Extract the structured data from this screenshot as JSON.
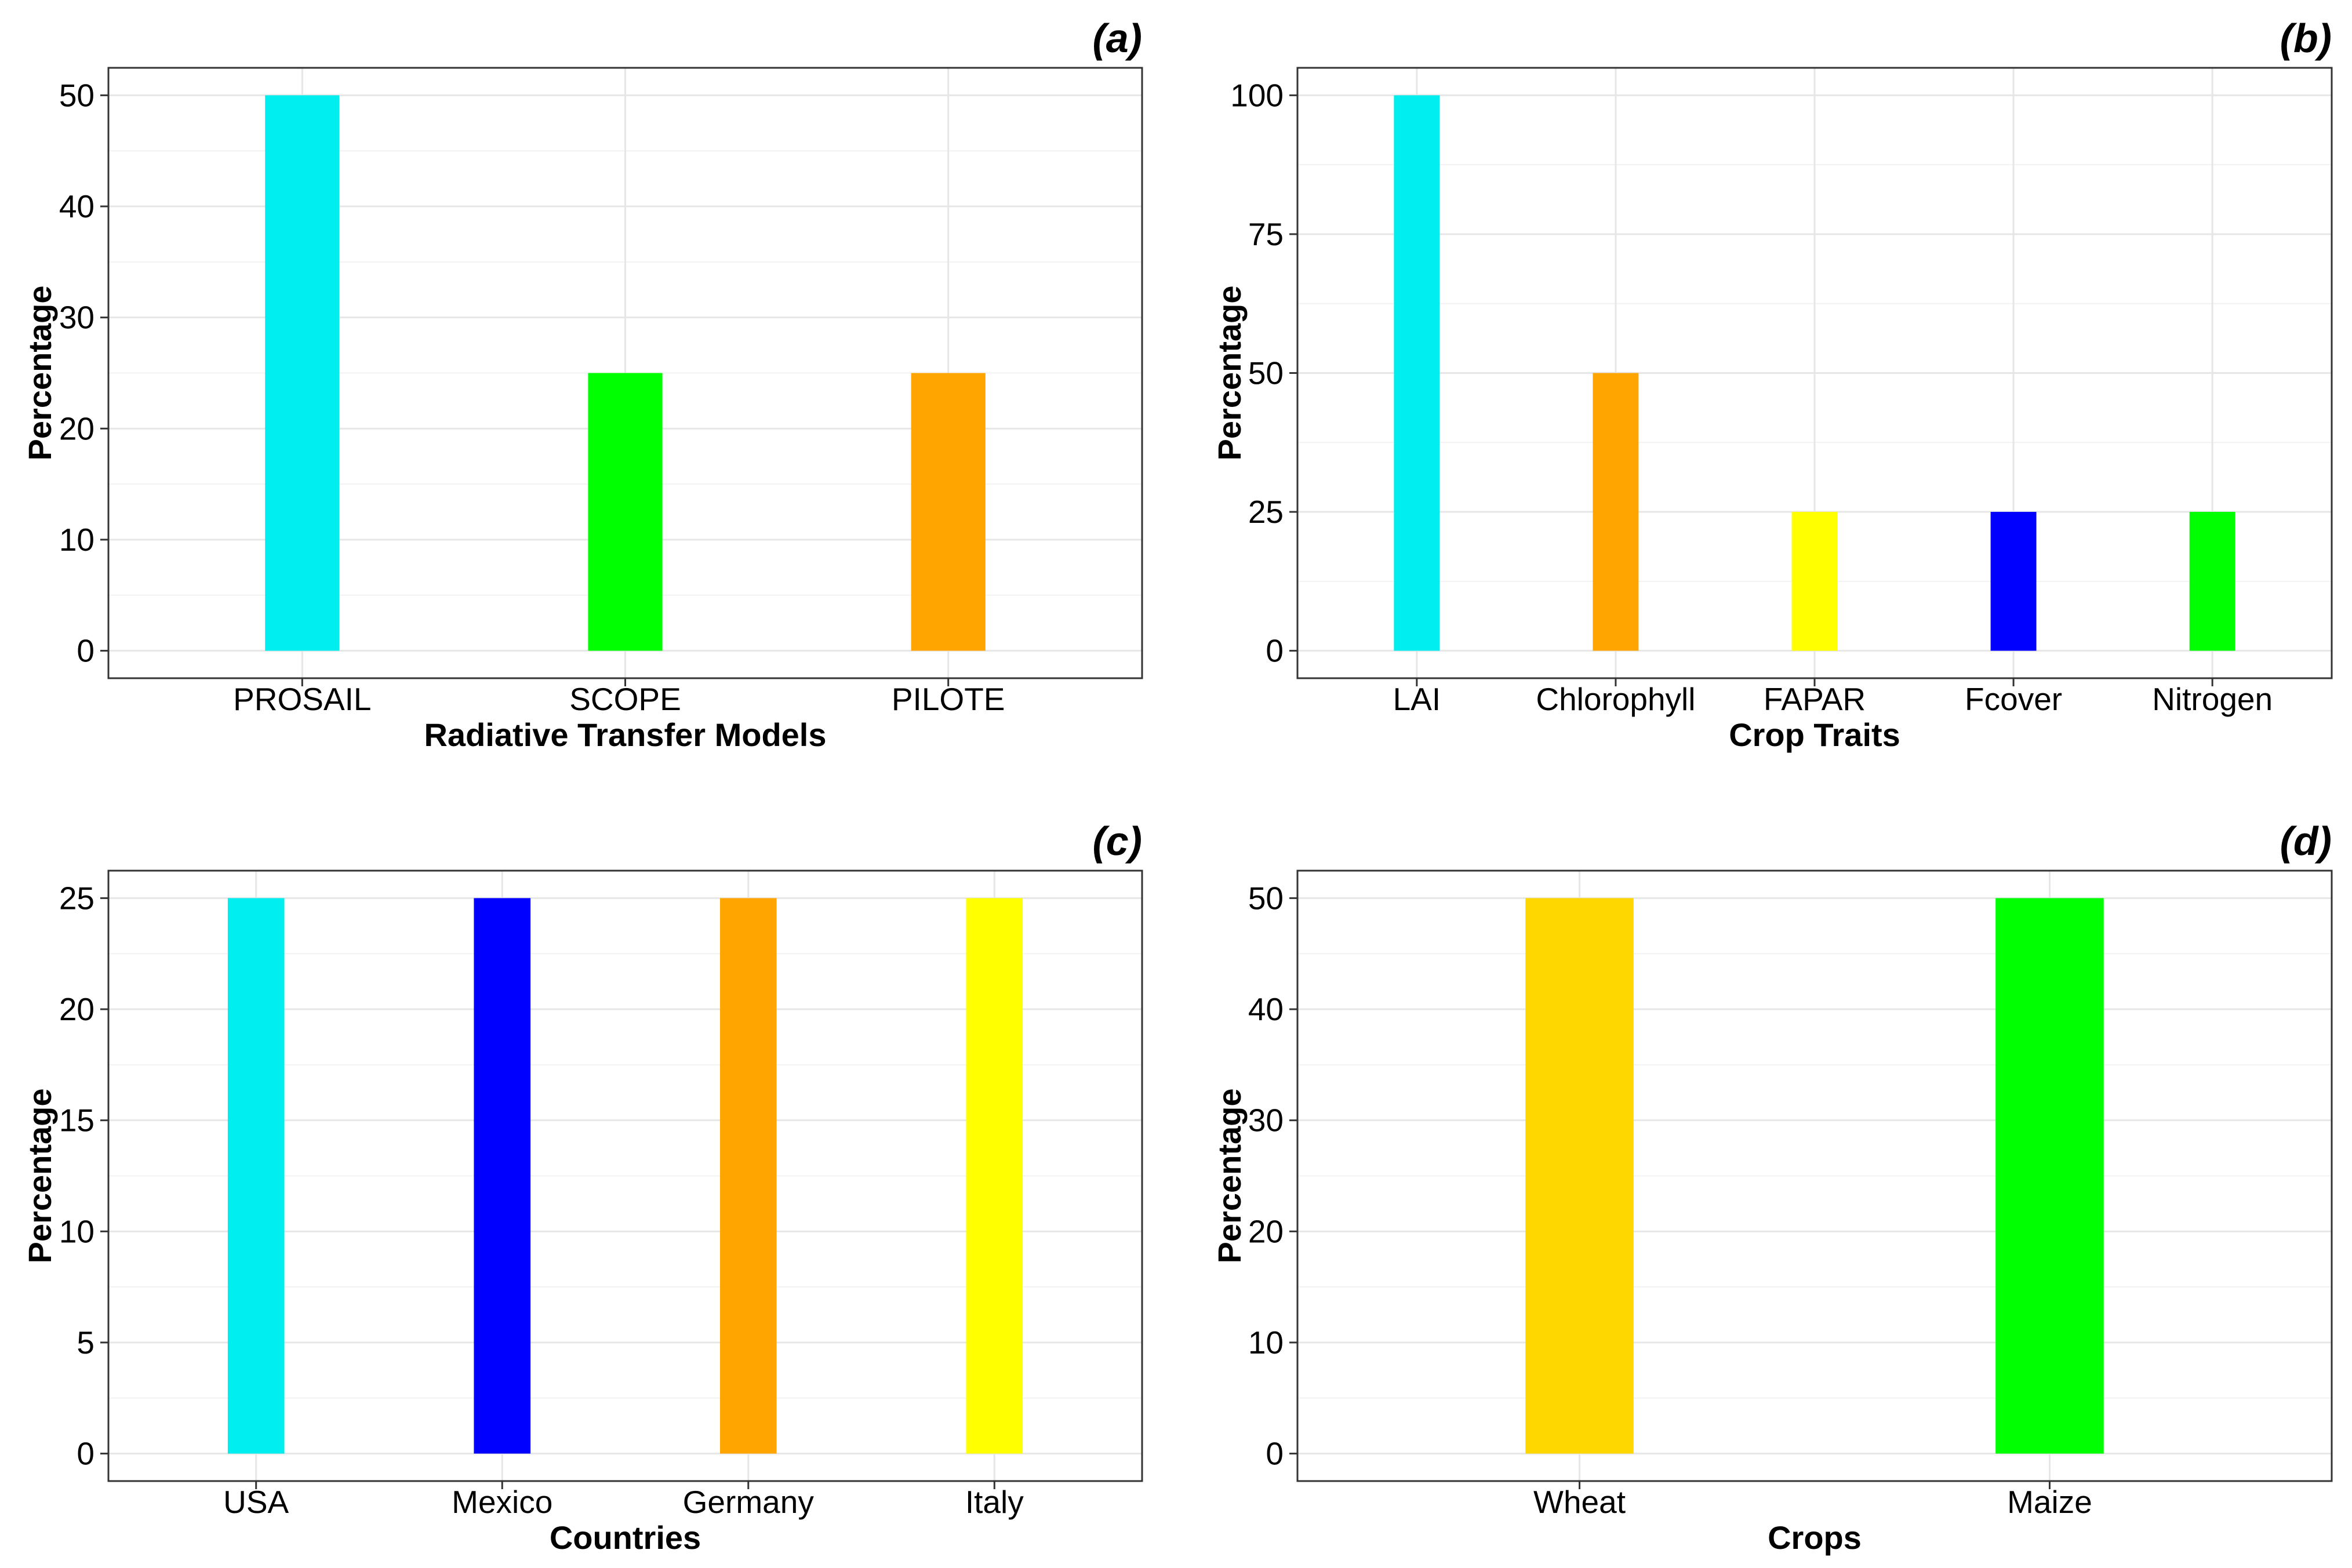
{
  "chart_data": [
    {
      "panel": "(a)",
      "type": "bar",
      "categories": [
        "PROSAIL",
        "SCOPE",
        "PILOTE"
      ],
      "values": [
        50,
        25,
        25
      ],
      "colors": [
        "#00EEEE",
        "#00FF00",
        "#FFA500"
      ],
      "xlabel": "Radiative Transfer Models",
      "ylabel": "Percentage",
      "ylim": [
        0,
        50
      ],
      "yticks": [
        0,
        10,
        20,
        30,
        40,
        50
      ],
      "grid": true
    },
    {
      "panel": "(b)",
      "type": "bar",
      "categories": [
        "LAI",
        "Chlorophyll",
        "FAPAR",
        "Fcover",
        "Nitrogen"
      ],
      "values": [
        100,
        50,
        25,
        25,
        25
      ],
      "colors": [
        "#00EEEE",
        "#FFA500",
        "#FFFF00",
        "#0000FF",
        "#00FF00"
      ],
      "xlabel": "Crop Traits",
      "ylabel": "Percentage",
      "ylim": [
        0,
        100
      ],
      "yticks": [
        0,
        25,
        50,
        75,
        100
      ],
      "grid": true
    },
    {
      "panel": "(c)",
      "type": "bar",
      "categories": [
        "USA",
        "Mexico",
        "Germany",
        "Italy"
      ],
      "values": [
        25,
        25,
        25,
        25
      ],
      "colors": [
        "#00EEEE",
        "#0000FF",
        "#FFA500",
        "#FFFF00"
      ],
      "xlabel": "Countries",
      "ylabel": "Percentage",
      "ylim": [
        0,
        25
      ],
      "yticks": [
        0,
        5,
        10,
        15,
        20,
        25
      ],
      "grid": true
    },
    {
      "panel": "(d)",
      "type": "bar",
      "categories": [
        "Wheat",
        "Maize"
      ],
      "values": [
        50,
        50
      ],
      "colors": [
        "#FFD700",
        "#00FF00"
      ],
      "xlabel": "Crops",
      "ylabel": "Percentage",
      "ylim": [
        0,
        50
      ],
      "yticks": [
        0,
        10,
        20,
        30,
        40,
        50
      ],
      "grid": true
    }
  ]
}
